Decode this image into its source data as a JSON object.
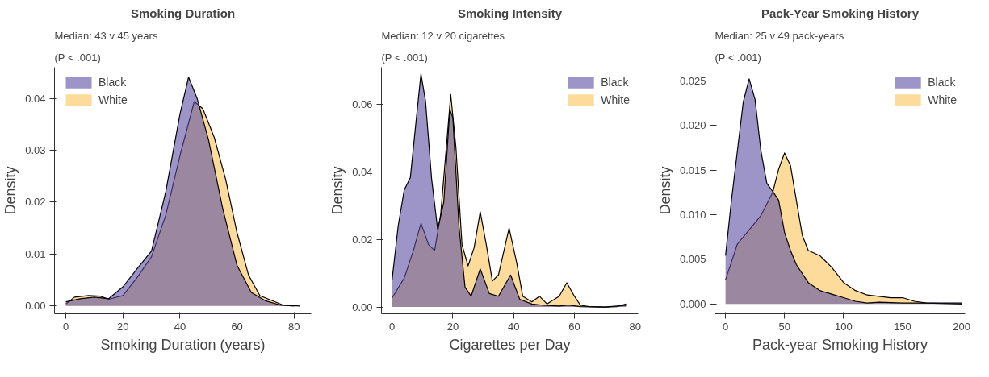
{
  "chart_data": [
    {
      "type": "area",
      "title": "Smoking Duration",
      "subtitle": "Median: 43 v 45 years",
      "annotations": [
        "(P < .001)"
      ],
      "xlabel": "Smoking Duration (years)",
      "ylabel": "Density",
      "xlim": [
        -4,
        86
      ],
      "ylim": [
        -0.0015,
        0.046
      ],
      "xticks": [
        0,
        20,
        40,
        60,
        80
      ],
      "yticks": [
        {
          "value": 0,
          "label": "0.00"
        },
        {
          "value": 0.01,
          "label": "0.01"
        },
        {
          "value": 0.02,
          "label": "0.02"
        },
        {
          "value": 0.03,
          "label": "0.03"
        },
        {
          "value": 0.04,
          "label": "0.04"
        }
      ],
      "legend": "top left",
      "grid": false,
      "series": [
        {
          "name": "White",
          "color": "#fbc458",
          "x": [
            0,
            3,
            8,
            12,
            15,
            20,
            25,
            30,
            35,
            40,
            45,
            48,
            52,
            56,
            60,
            64,
            68,
            72,
            76,
            82
          ],
          "values": [
            0.0004,
            0.0017,
            0.002,
            0.0019,
            0.0013,
            0.002,
            0.0055,
            0.0095,
            0.0175,
            0.029,
            0.0394,
            0.038,
            0.0325,
            0.0244,
            0.0141,
            0.006,
            0.002,
            0.0011,
            0.0002,
            0
          ]
        },
        {
          "name": "Black",
          "color": "#5b4ea3",
          "x": [
            0,
            5,
            10,
            15,
            20,
            25,
            30,
            35,
            40,
            43,
            46,
            50,
            55,
            60,
            65,
            70,
            75,
            80
          ],
          "values": [
            0.0008,
            0.0014,
            0.0017,
            0.0014,
            0.0037,
            0.0072,
            0.0106,
            0.022,
            0.037,
            0.0441,
            0.04,
            0.032,
            0.0187,
            0.0078,
            0.0026,
            0.001,
            0.0002,
            0
          ]
        }
      ]
    },
    {
      "type": "area",
      "title": "Smoking Intensity",
      "subtitle": "Median: 12 v 20 cigarettes",
      "annotations": [
        "(P < .001)"
      ],
      "xlabel": "Cigarettes per Day",
      "ylabel": "Density",
      "xlim": [
        -3.5,
        81
      ],
      "ylim": [
        -0.002,
        0.071
      ],
      "xticks": [
        0,
        20,
        40,
        60,
        80
      ],
      "yticks": [
        {
          "value": 0,
          "label": "0.00"
        },
        {
          "value": 0.02,
          "label": "0.02"
        },
        {
          "value": 0.04,
          "label": "0.04"
        },
        {
          "value": 0.06,
          "label": "0.06"
        }
      ],
      "legend": "top right",
      "grid": false,
      "series": [
        {
          "name": "White",
          "color": "#fbc458",
          "x": [
            0,
            4,
            7,
            9.5,
            12,
            14,
            16,
            19.3,
            21,
            23,
            25,
            27,
            29,
            31,
            33,
            35,
            38.5,
            41,
            43,
            46,
            48.5,
            51,
            55,
            57.5,
            60,
            62,
            65,
            70,
            74,
            77
          ],
          "values": [
            0.0027,
            0.0086,
            0.0167,
            0.0248,
            0.0185,
            0.0167,
            0.0275,
            0.0629,
            0.0473,
            0.0185,
            0.0122,
            0.0176,
            0.0282,
            0.0185,
            0.0077,
            0.0095,
            0.0234,
            0.0131,
            0.0032,
            0.0015,
            0.0032,
            0.0009,
            0.0032,
            0.0072,
            0.0032,
            0.0005,
            0.0001,
            0,
            0.0001,
            0.0009
          ]
        },
        {
          "name": "Black",
          "color": "#5b4ea3",
          "x": [
            0,
            2,
            4,
            6,
            8,
            9.5,
            11,
            13,
            15,
            17,
            19,
            20,
            22,
            24,
            26,
            29,
            32,
            35,
            39,
            42,
            46,
            50,
            55,
            58,
            62,
            70,
            77
          ],
          "values": [
            0.0081,
            0.024,
            0.0347,
            0.0383,
            0.056,
            0.069,
            0.061,
            0.038,
            0.023,
            0.031,
            0.0585,
            0.056,
            0.024,
            0.0059,
            0.0032,
            0.0113,
            0.004,
            0.0032,
            0.0095,
            0.0023,
            0.0009,
            0.0005,
            0.0003,
            0.0006,
            0.0001,
            0,
            0.0005
          ]
        }
      ]
    },
    {
      "type": "area",
      "title": "Pack-Year Smoking History",
      "subtitle": "Median: 25 v 49 pack-years",
      "annotations": [
        "(P < .001)"
      ],
      "xlabel": "Pack-year Smoking History",
      "ylabel": "Density",
      "xlim": [
        -9,
        203
      ],
      "ylim": [
        -0.0011,
        0.0265
      ],
      "xticks": [
        0,
        50,
        100,
        150,
        200
      ],
      "yticks": [
        {
          "value": 0,
          "label": "0.000"
        },
        {
          "value": 0.005,
          "label": "0.005"
        },
        {
          "value": 0.01,
          "label": "0.010"
        },
        {
          "value": 0.015,
          "label": "0.015"
        },
        {
          "value": 0.02,
          "label": "0.020"
        },
        {
          "value": 0.025,
          "label": "0.025"
        }
      ],
      "legend": "top right",
      "grid": false,
      "series": [
        {
          "name": "White",
          "color": "#fbc458",
          "x": [
            0,
            10,
            20,
            30,
            40,
            45,
            50,
            55,
            60,
            65,
            70,
            80,
            90,
            100,
            110,
            120,
            140,
            150,
            160,
            170,
            200
          ],
          "values": [
            0.0027,
            0.0067,
            0.0083,
            0.0099,
            0.0125,
            0.0151,
            0.0169,
            0.0155,
            0.0116,
            0.0077,
            0.006,
            0.0054,
            0.0041,
            0.0024,
            0.0015,
            0.001,
            0.0007,
            0.0007,
            0.0003,
            0.0001,
            0
          ]
        },
        {
          "name": "Black",
          "color": "#5b4ea3",
          "x": [
            0,
            5,
            10,
            15,
            20,
            25,
            30,
            35,
            40,
            45,
            50,
            55,
            60,
            70,
            80,
            90,
            100,
            110,
            120,
            130,
            150,
            170,
            200
          ],
          "values": [
            0.0054,
            0.0116,
            0.0171,
            0.0226,
            0.0252,
            0.0229,
            0.0171,
            0.0135,
            0.0126,
            0.0116,
            0.008,
            0.006,
            0.0044,
            0.0024,
            0.0015,
            0.0011,
            0.0007,
            0.0003,
            0.0001,
            0.0002,
            0.0001,
            0.0001,
            0.0001
          ]
        }
      ]
    }
  ]
}
